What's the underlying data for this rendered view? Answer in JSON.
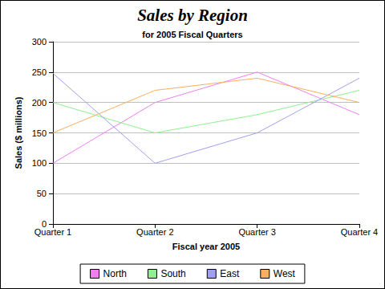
{
  "chart_data": {
    "type": "line",
    "title": "Sales by Region",
    "subtitle": "for 2005 Fiscal Quarters",
    "x_label": "Fiscal year 2005",
    "y_label": "Sales ($ millions)",
    "categories": [
      "Quarter 1",
      "Quarter 2",
      "Quarter 3",
      "Quarter 4"
    ],
    "series": [
      {
        "name": "North",
        "color": "#f080f0",
        "values": [
          100,
          200,
          250,
          180
        ]
      },
      {
        "name": "South",
        "color": "#90f090",
        "values": [
          200,
          150,
          180,
          220
        ]
      },
      {
        "name": "East",
        "color": "#a0a0f0",
        "values": [
          248,
          100,
          150,
          240
        ]
      },
      {
        "name": "West",
        "color": "#f8b060",
        "values": [
          150,
          220,
          240,
          200
        ]
      }
    ],
    "ylim": [
      0,
      300
    ],
    "yticks": [
      0,
      50,
      100,
      150,
      200,
      250,
      300
    ],
    "grid": true,
    "legend": "bottom"
  }
}
